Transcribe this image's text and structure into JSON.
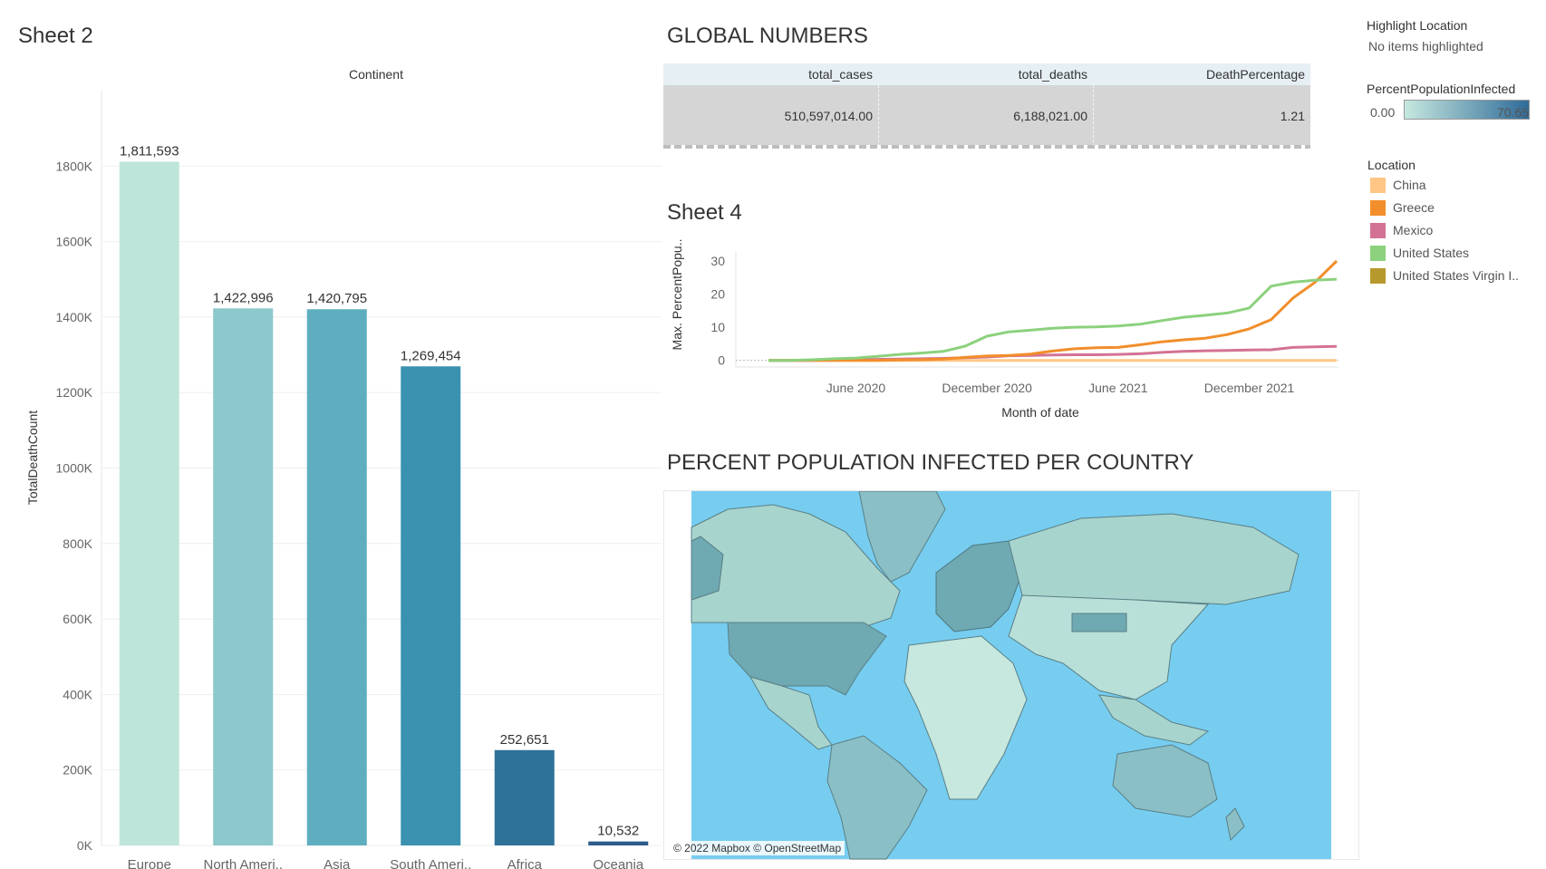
{
  "sheet2": {
    "title": "Sheet 2",
    "column_header": "Continent",
    "ylabel": "TotalDeathCount"
  },
  "global_numbers": {
    "title": "GLOBAL NUMBERS",
    "headers": [
      "total_cases",
      "total_deaths",
      "DeathPercentage"
    ],
    "values": [
      "510,597,014.00",
      "6,188,021.00",
      "1.21"
    ]
  },
  "sheet4": {
    "title": "Sheet 4",
    "ylabel": "Max. PercentPopu..",
    "xlabel": "Month of date"
  },
  "map": {
    "title": "PERCENT POPULATION INFECTED PER COUNTRY",
    "attribution": "© 2022 Mapbox © OpenStreetMap",
    "ocean_color": "#76cdf0"
  },
  "highlight": {
    "title": "Highlight Location",
    "value": "No items highlighted"
  },
  "color_legend": {
    "title": "PercentPopulationInfected",
    "min": "0.00",
    "max": "70.65",
    "colors": [
      "#c6e8df",
      "#2f6b98"
    ]
  },
  "location_legend": {
    "title": "Location",
    "items": [
      {
        "label": "China",
        "color": "#ffc685"
      },
      {
        "label": "Greece",
        "color": "#f28e2b"
      },
      {
        "label": "Mexico",
        "color": "#d37295"
      },
      {
        "label": "United States",
        "color": "#8cd17d"
      },
      {
        "label": "United States Virgin I..",
        "color": "#b6992d"
      }
    ]
  },
  "chart_data": [
    {
      "type": "bar",
      "categories": [
        "Europe",
        "North Ameri..",
        "Asia",
        "South Ameri..",
        "Africa",
        "Oceania"
      ],
      "values": [
        1811593,
        1422996,
        1420795,
        1269454,
        252651,
        10532
      ],
      "value_labels": [
        "1,811,593",
        "1,422,996",
        "1,420,795",
        "1,269,454",
        "252,651",
        "10,532"
      ],
      "colors": [
        "#bde5da",
        "#8cc8cc",
        "#5eaec0",
        "#3a92b0",
        "#2f7299",
        "#2c5b8a"
      ],
      "ylabel": "TotalDeathCount",
      "ylim": [
        0,
        1900000
      ],
      "yticks": [
        0,
        200000,
        400000,
        600000,
        800000,
        1000000,
        1200000,
        1400000,
        1600000,
        1800000
      ],
      "ytick_labels": [
        "0K",
        "200K",
        "400K",
        "600K",
        "800K",
        "1000K",
        "1200K",
        "1400K",
        "1600K",
        "1800K"
      ],
      "grid": true
    },
    {
      "type": "line",
      "x": [
        "2020-02",
        "2020-03",
        "2020-04",
        "2020-05",
        "2020-06",
        "2020-07",
        "2020-08",
        "2020-09",
        "2020-10",
        "2020-11",
        "2020-12",
        "2021-01",
        "2021-02",
        "2021-03",
        "2021-04",
        "2021-05",
        "2021-06",
        "2021-07",
        "2021-08",
        "2021-09",
        "2021-10",
        "2021-11",
        "2021-12",
        "2022-01",
        "2022-02",
        "2022-03",
        "2022-04"
      ],
      "xtick_labels": [
        "June 2020",
        "December 2020",
        "June 2021",
        "December 2021"
      ],
      "xticks": [
        "2020-06",
        "2020-12",
        "2021-06",
        "2021-12"
      ],
      "xlabel": "Month of date",
      "ylabel": "Max. PercentPopu..",
      "ylim": [
        -2,
        33
      ],
      "yticks": [
        0,
        10,
        20,
        30
      ],
      "series": [
        {
          "name": "China",
          "color": "#ffc685",
          "values": [
            0,
            0,
            0,
            0,
            0,
            0,
            0,
            0,
            0,
            0,
            0,
            0,
            0,
            0,
            0,
            0,
            0,
            0,
            0,
            0,
            0,
            0,
            0,
            0,
            0,
            0,
            0
          ]
        },
        {
          "name": "Mexico",
          "color": "#d37295",
          "values": [
            0,
            0,
            0,
            0.1,
            0.2,
            0.3,
            0.4,
            0.5,
            0.6,
            0.8,
            1.0,
            1.4,
            1.5,
            1.6,
            1.7,
            1.7,
            1.8,
            2.0,
            2.4,
            2.7,
            2.9,
            3.0,
            3.1,
            3.2,
            3.9,
            4.1,
            4.2
          ]
        },
        {
          "name": "Greece",
          "color": "#f28e2b",
          "values": [
            0,
            0,
            0,
            0,
            0,
            0,
            0.1,
            0.2,
            0.4,
            0.9,
            1.3,
            1.5,
            1.9,
            2.8,
            3.5,
            3.8,
            3.9,
            4.7,
            5.6,
            6.2,
            6.7,
            7.8,
            9.5,
            12.3,
            18.8,
            23.5,
            30.0
          ]
        },
        {
          "name": "United States",
          "color": "#8cd17d",
          "values": [
            0,
            0,
            0.2,
            0.5,
            0.7,
            1.2,
            1.8,
            2.2,
            2.7,
            4.3,
            7.3,
            8.6,
            9.1,
            9.7,
            10.0,
            10.1,
            10.4,
            10.9,
            12.0,
            13.0,
            13.6,
            14.3,
            15.8,
            22.4,
            23.6,
            24.2,
            24.5
          ]
        }
      ]
    }
  ]
}
